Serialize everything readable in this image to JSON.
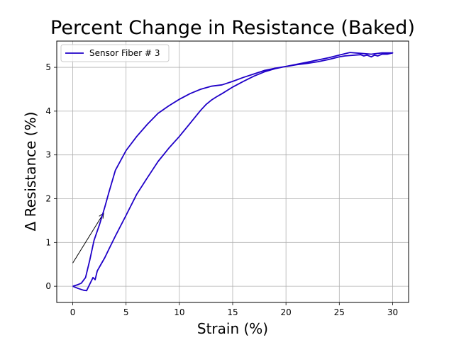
{
  "chart_data": {
    "type": "line",
    "title": "Percent Change in Resistance (Baked)",
    "xlabel": "Strain (%)",
    "ylabel": "Δ Resistance (%)",
    "xlim": [
      -1.5,
      31.5
    ],
    "ylim": [
      -0.37,
      5.6
    ],
    "xticks": [
      0,
      5,
      10,
      15,
      20,
      25,
      30
    ],
    "yticks": [
      0,
      1,
      2,
      3,
      4,
      5
    ],
    "grid": true,
    "legend_position": "top-left",
    "series": [
      {
        "name": "Sensor Fiber # 3",
        "color": "#1f00c8",
        "x": [
          0,
          0.5,
          1.0,
          1.3,
          1.6,
          1.9,
          2.1,
          2.3,
          2.6,
          3.0,
          3.4,
          4.0,
          5.0,
          6.0,
          7.0,
          8.0,
          9.0,
          10.0,
          11.0,
          12.0,
          12.5,
          13.0,
          13.5,
          14.0,
          15.0,
          16.0,
          17.0,
          18.0,
          19.0,
          20.0,
          21.0,
          22.0,
          23.0,
          24.0,
          25.0,
          25.5,
          26.0,
          27.0,
          27.3,
          27.6,
          28.0,
          28.3,
          28.6,
          29.0,
          29.5,
          30.0,
          29.0,
          28.0,
          27.0,
          26.0,
          25.0,
          24.0,
          23.0,
          22.0,
          21.0,
          20.0,
          19.0,
          18.0,
          17.0,
          16.0,
          15.0,
          14.0,
          13.0,
          12.0,
          11.0,
          10.0,
          9.0,
          8.0,
          7.0,
          6.0,
          5.0,
          4.0,
          3.4,
          3.0,
          2.5,
          2.0,
          1.6,
          1.2,
          0.8,
          0.4,
          0
        ],
        "y": [
          0,
          -0.05,
          -0.09,
          -0.1,
          0.05,
          0.2,
          0.15,
          0.35,
          0.48,
          0.65,
          0.85,
          1.15,
          1.62,
          2.1,
          2.48,
          2.85,
          3.15,
          3.42,
          3.72,
          4.02,
          4.15,
          4.25,
          4.33,
          4.4,
          4.55,
          4.68,
          4.8,
          4.9,
          4.97,
          5.02,
          5.06,
          5.09,
          5.13,
          5.18,
          5.24,
          5.26,
          5.27,
          5.29,
          5.26,
          5.28,
          5.24,
          5.28,
          5.26,
          5.3,
          5.3,
          5.33,
          5.33,
          5.3,
          5.32,
          5.34,
          5.28,
          5.22,
          5.17,
          5.12,
          5.07,
          5.02,
          4.98,
          4.93,
          4.85,
          4.77,
          4.68,
          4.6,
          4.57,
          4.5,
          4.4,
          4.27,
          4.12,
          3.95,
          3.7,
          3.42,
          3.1,
          2.65,
          2.15,
          1.8,
          1.4,
          1.05,
          0.6,
          0.2,
          0.07,
          0.03,
          0
        ]
      }
    ],
    "annotation": {
      "type": "arrow",
      "from": [
        0,
        0.53
      ],
      "to": [
        2.9,
        1.67
      ]
    }
  }
}
